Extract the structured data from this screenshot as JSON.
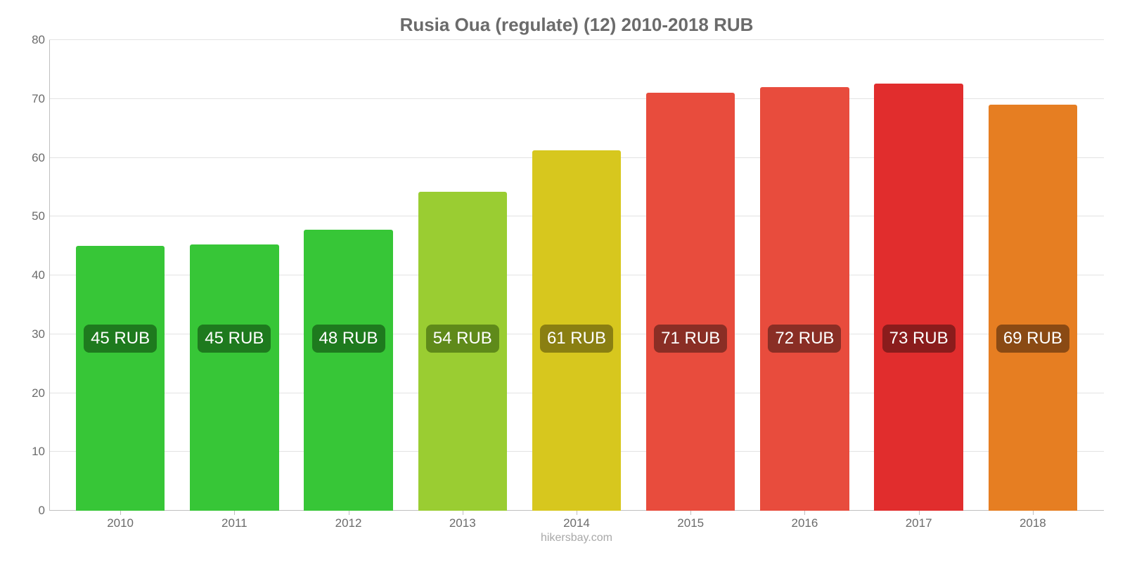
{
  "chart": {
    "type": "bar",
    "title": "Rusia Oua (regulate) (12) 2010-2018 RUB",
    "title_fontsize": 26,
    "title_color": "#6b6b6b",
    "footer": "hikersbay.com",
    "footer_color": "#a8a8a8",
    "background_color": "#ffffff",
    "grid_color": "#e3e3e3",
    "axis_color": "#bfbfbf",
    "label_color": "#6b6b6b",
    "axis_fontsize": 17,
    "bar_label_fontsize": 24,
    "bar_width_pct": 78,
    "ylim": [
      0,
      80
    ],
    "ytick_step": 10,
    "yticks": [
      0,
      10,
      20,
      30,
      40,
      50,
      60,
      70,
      80
    ],
    "categories": [
      "2010",
      "2011",
      "2012",
      "2013",
      "2014",
      "2015",
      "2016",
      "2017",
      "2018"
    ],
    "values": [
      45,
      45.2,
      47.8,
      54.2,
      61.3,
      71,
      72,
      72.6,
      69
    ],
    "value_labels": [
      "45 RUB",
      "45 RUB",
      "48 RUB",
      "54 RUB",
      "61 RUB",
      "71 RUB",
      "72 RUB",
      "73 RUB",
      "69 RUB"
    ],
    "bar_colors": [
      "#37c637",
      "#37c637",
      "#37c637",
      "#9acd32",
      "#d7c71e",
      "#e84c3d",
      "#e84c3d",
      "#e12d2d",
      "#e67e22"
    ],
    "bar_label_bg": [
      "#1e7a1e",
      "#1e7a1e",
      "#1e7a1e",
      "#5f8a1a",
      "#8a7f12",
      "#8a2e25",
      "#8a2e25",
      "#8a1c1c",
      "#8a4a14"
    ],
    "bar_label_text_color": "#ffffff",
    "label_vertical_offset": 225
  }
}
